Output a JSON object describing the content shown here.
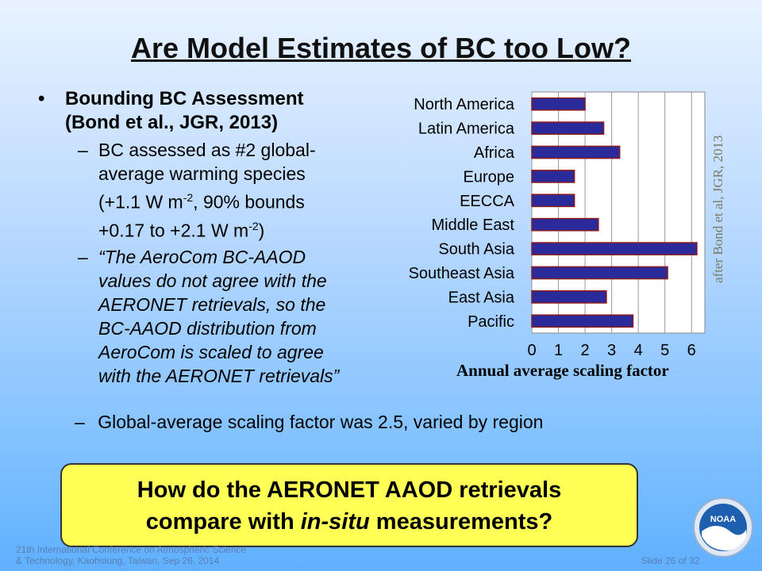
{
  "title": "Are Model Estimates of BC too Low?",
  "bullet_main": {
    "marker": "•",
    "line1": "Bounding BC Assessment",
    "line2": "(Bond et al., JGR, 2013)"
  },
  "sub1": {
    "dash": "–",
    "line1": "BC assessed as #2 global-",
    "line2": "average warming species",
    "line3a": "(+1.1 W m",
    "line3sup": "-2",
    "line3b": ", 90% bounds",
    "line4a": "+0.17 to +2.1 W m",
    "line4sup": "-2",
    "line4b": ")"
  },
  "sub2": {
    "dash": "–",
    "lines": [
      "“The AeroCom BC-AAOD",
      "values do not agree with the",
      "AERONET retrievals, so the",
      "BC-AAOD distribution from",
      "AeroCom is scaled to agree",
      "with the AERONET retrievals”"
    ]
  },
  "sub3": {
    "dash": "–",
    "text": "Global-average scaling factor was 2.5, varied by region"
  },
  "chart_data": {
    "type": "bar",
    "orientation": "horizontal",
    "categories": [
      "North America",
      "Latin America",
      "Africa",
      "Europe",
      "EECCA",
      "Middle East",
      "South Asia",
      "Southeast Asia",
      "East Asia",
      "Pacific"
    ],
    "values": [
      2.0,
      2.7,
      3.3,
      1.6,
      1.6,
      2.5,
      6.2,
      5.1,
      2.8,
      3.8
    ],
    "xlabel": "Annual average scaling factor",
    "xlim": [
      0,
      6.5
    ],
    "xticks": [
      "0",
      "1",
      "2",
      "3",
      "4",
      "5",
      "6"
    ],
    "grid": true,
    "bar_color": "#2a2a9a",
    "bar_edge_color": "#8b1a1a"
  },
  "credit": "after Bond et al, JGR, 2013",
  "callout": {
    "line1": "How do the AERONET AAOD retrievals",
    "line2a": "compare with ",
    "line2i": "in-situ",
    "line2b": " measurements?"
  },
  "footer": {
    "line1": "21th International Conference on Atmospheric Science",
    "line2": "& Technology, Kaohsiung, Taiwan, Sep 26, 2014"
  },
  "slide_number": "Slide 26 of 32",
  "logo_text": "NOAA"
}
